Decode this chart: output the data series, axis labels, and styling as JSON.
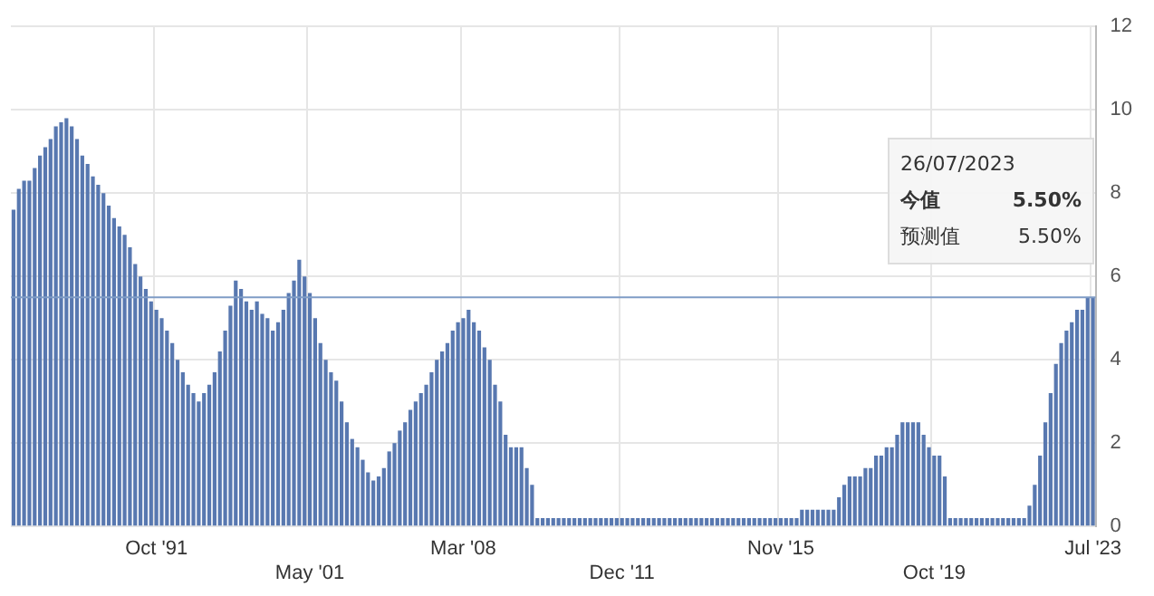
{
  "chart_data": {
    "type": "bar",
    "categories": [
      null,
      null,
      null,
      null,
      null,
      null,
      null,
      null,
      null,
      null,
      null,
      null,
      null,
      null,
      null,
      null,
      null,
      null,
      null,
      null,
      null,
      null,
      null,
      null,
      null,
      null,
      null,
      "Oct '91",
      null,
      null,
      null,
      null,
      null,
      null,
      null,
      null,
      null,
      null,
      null,
      null,
      null,
      null,
      null,
      null,
      null,
      null,
      null,
      null,
      null,
      null,
      null,
      null,
      null,
      null,
      null,
      null,
      "May '01",
      null,
      null,
      null,
      null,
      null,
      null,
      null,
      null,
      null,
      null,
      null,
      null,
      null,
      null,
      null,
      null,
      null,
      null,
      null,
      null,
      null,
      null,
      null,
      null,
      null,
      null,
      null,
      null,
      "Mar '08",
      null,
      null,
      null,
      null,
      null,
      null,
      null,
      null,
      null,
      null,
      null,
      null,
      null,
      null,
      null,
      null,
      null,
      null,
      null,
      null,
      null,
      null,
      null,
      null,
      null,
      null,
      null,
      null,
      null,
      "Dec '11",
      null,
      null,
      null,
      null,
      null,
      null,
      null,
      null,
      null,
      null,
      null,
      null,
      null,
      null,
      null,
      null,
      null,
      null,
      null,
      null,
      null,
      null,
      null,
      null,
      null,
      null,
      null,
      null,
      null,
      "Nov '15",
      null,
      null,
      null,
      null,
      null,
      null,
      null,
      null,
      null,
      null,
      null,
      null,
      null,
      null,
      null,
      null,
      null,
      null,
      null,
      null,
      null,
      null,
      null,
      null,
      null,
      null,
      null,
      null,
      "Oct '19",
      null,
      null,
      null,
      null,
      null,
      null,
      null,
      null,
      null,
      null,
      null,
      null,
      null,
      null,
      null,
      null,
      null,
      null,
      null,
      null,
      null,
      null,
      null,
      null,
      null,
      null,
      null,
      null,
      null,
      "Jul '23"
    ],
    "values": [
      7.6,
      8.1,
      8.3,
      8.3,
      8.6,
      8.9,
      9.1,
      9.3,
      9.6,
      9.7,
      9.8,
      9.6,
      9.3,
      8.9,
      8.7,
      8.4,
      8.2,
      8.0,
      7.7,
      7.4,
      7.2,
      7.0,
      6.7,
      6.3,
      6.0,
      5.7,
      5.4,
      5.2,
      5.0,
      4.7,
      4.4,
      4.0,
      3.7,
      3.4,
      3.2,
      3.0,
      3.2,
      3.4,
      3.7,
      4.2,
      4.7,
      5.3,
      5.9,
      5.7,
      5.4,
      5.2,
      5.4,
      5.1,
      5.0,
      4.7,
      4.9,
      5.2,
      5.6,
      5.9,
      6.4,
      6.0,
      5.6,
      5.0,
      4.4,
      4.0,
      3.7,
      3.5,
      3.0,
      2.5,
      2.1,
      1.9,
      1.6,
      1.3,
      1.1,
      1.2,
      1.4,
      1.8,
      2.0,
      2.3,
      2.5,
      2.8,
      3.0,
      3.2,
      3.4,
      3.7,
      4.0,
      4.2,
      4.4,
      4.7,
      4.9,
      5.0,
      5.2,
      4.9,
      4.7,
      4.3,
      4.0,
      3.4,
      3.0,
      2.2,
      1.9,
      1.9,
      1.9,
      1.4,
      1.0,
      0.2,
      0.2,
      0.2,
      0.2,
      0.2,
      0.2,
      0.2,
      0.2,
      0.2,
      0.2,
      0.2,
      0.2,
      0.2,
      0.2,
      0.2,
      0.2,
      0.2,
      0.2,
      0.2,
      0.2,
      0.2,
      0.2,
      0.2,
      0.2,
      0.2,
      0.2,
      0.2,
      0.2,
      0.2,
      0.2,
      0.2,
      0.2,
      0.2,
      0.2,
      0.2,
      0.2,
      0.2,
      0.2,
      0.2,
      0.2,
      0.2,
      0.2,
      0.2,
      0.2,
      0.2,
      0.2,
      0.2,
      0.2,
      0.2,
      0.2,
      0.4,
      0.4,
      0.4,
      0.4,
      0.4,
      0.4,
      0.4,
      0.7,
      1.0,
      1.2,
      1.2,
      1.2,
      1.4,
      1.4,
      1.7,
      1.7,
      1.9,
      1.9,
      2.2,
      2.5,
      2.5,
      2.5,
      2.5,
      2.2,
      1.9,
      1.7,
      1.7,
      1.2,
      0.2,
      0.2,
      0.2,
      0.2,
      0.2,
      0.2,
      0.2,
      0.2,
      0.2,
      0.2,
      0.2,
      0.2,
      0.2,
      0.2,
      0.2,
      0.5,
      1.0,
      1.7,
      2.5,
      3.2,
      3.9,
      4.4,
      4.7,
      4.9,
      5.2,
      5.2,
      5.5,
      5.5
    ],
    "color": "#5878b0",
    "ylim": [
      0,
      12
    ],
    "yticks": [
      0,
      2,
      4,
      6,
      8,
      10,
      12
    ],
    "grid": true,
    "legend": false,
    "ref_lines": [
      {
        "axis": "y",
        "value": 5.5,
        "color": "#7f9cc6"
      }
    ],
    "annotations": [
      "26/07/2023",
      "今值 5.50%",
      "预测值 5.50%"
    ]
  }
}
